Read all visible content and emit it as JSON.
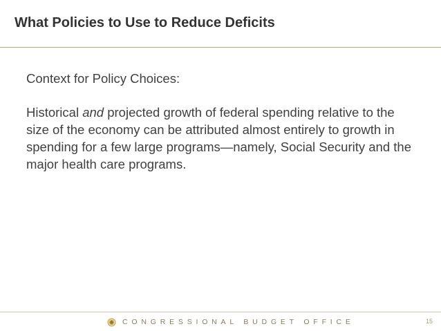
{
  "slide": {
    "title": "What Policies to Use to Reduce Deficits",
    "context_heading": "Context for Policy Choices:",
    "paragraph_before": "Historical ",
    "paragraph_emphasis": "and",
    "paragraph_after": " projected growth of federal spending relative to the size of the economy can be attributed almost entirely to growth in spending for a few large programs—namely, Social Security and the major health care programs."
  },
  "footer": {
    "organization": "CONGRESSIONAL BUDGET OFFICE",
    "page_number": "15",
    "logo_icon": "cbo-seal-icon"
  },
  "colors": {
    "title": "#333333",
    "body": "#404040",
    "rule": "#b8ab8a",
    "footer_text": "#8a7d58",
    "seal": "#c9a85a"
  }
}
